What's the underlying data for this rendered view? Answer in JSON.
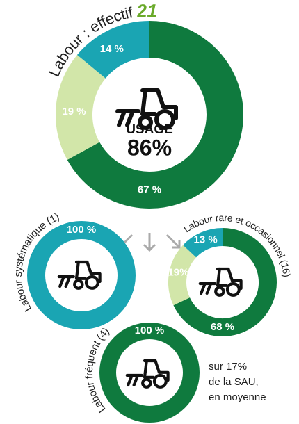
{
  "chart_data": [
    {
      "type": "donut",
      "title": "Labour : effectif",
      "count": 21,
      "center_label": "USAGE",
      "center_value": 86,
      "center_value_label": "86%",
      "categories": [
        "Labour fréquent",
        "Labour systématique",
        "Labour rare et occasionnel"
      ],
      "values": [
        67,
        19,
        14
      ],
      "value_labels": [
        "67 %",
        "19 %",
        "14 %"
      ],
      "colors": [
        "#0f7a3e",
        "#d2e6a9",
        "#1aa5b3"
      ]
    },
    {
      "type": "donut",
      "title": "Labour systématique",
      "count": {
        "value": 1,
        "label": "(1)"
      },
      "values": [
        100
      ],
      "value_labels": [
        "100 %"
      ],
      "colors": [
        "#1aa5b3"
      ]
    },
    {
      "type": "donut",
      "title": "Labour rare et occasionnel",
      "count": {
        "value": 16,
        "label": "(16)"
      },
      "values": [
        68,
        19,
        13
      ],
      "value_labels": [
        "68 %",
        "19%",
        "13 %"
      ],
      "colors": [
        "#0f7a3e",
        "#d2e6a9",
        "#1aa5b3"
      ]
    },
    {
      "type": "donut",
      "title": "Labour fréquent",
      "count": {
        "value": 4,
        "label": "(4)"
      },
      "values": [
        100
      ],
      "value_labels": [
        "100 %"
      ],
      "colors": [
        "#0f7a3e"
      ],
      "note": [
        "sur 17%",
        "de la SAU,",
        "en moyenne"
      ]
    }
  ]
}
